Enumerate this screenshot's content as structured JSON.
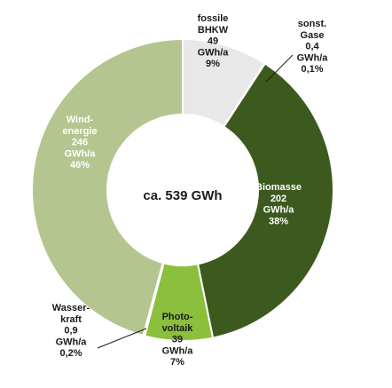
{
  "chart_data": {
    "type": "pie",
    "center_label": "ca. 539 GWh",
    "colors": {
      "fossile": "#e8e8e8",
      "sonst": "#cfd8c4",
      "biomasse": "#3d5a1e",
      "photovoltaik": "#8bbf3c",
      "wasserkraft": "#b9c89e",
      "windenergie": "#b5c58f"
    },
    "slices": [
      {
        "key": "fossile",
        "value": 49,
        "percent": 9,
        "lines": [
          "fossile",
          "BHKW",
          "49",
          "GWh/a",
          "9%"
        ]
      },
      {
        "key": "sonst",
        "value": 0.4,
        "percent": 0.1,
        "lines": [
          "sonst.",
          "Gase",
          "0,4",
          "GWh/a",
          "0,1%"
        ]
      },
      {
        "key": "biomasse",
        "value": 202,
        "percent": 38,
        "lines": [
          "Biomasse",
          "202",
          "GWh/a",
          "38%"
        ]
      },
      {
        "key": "photovoltaik",
        "value": 39,
        "percent": 7,
        "lines": [
          "Photo-",
          "voltaik",
          "39",
          "GWh/a",
          "7%"
        ]
      },
      {
        "key": "wasserkraft",
        "value": 0.9,
        "percent": 0.2,
        "lines": [
          "Wasser-",
          "kraft",
          "0,9",
          "GWh/a",
          "0,2%"
        ]
      },
      {
        "key": "windenergie",
        "value": 246,
        "percent": 46,
        "lines": [
          "Wind-",
          "energie",
          "246",
          "GWh/a",
          "46%"
        ]
      }
    ]
  }
}
